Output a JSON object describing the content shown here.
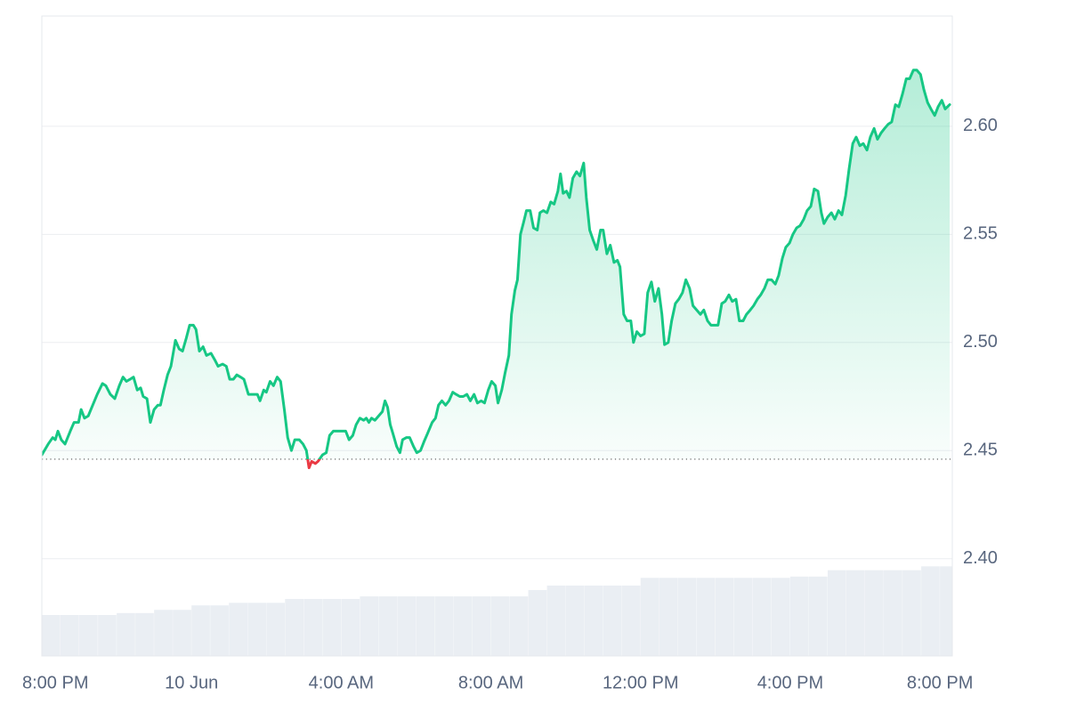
{
  "chart_data": {
    "type": "line",
    "color": "#16c784",
    "below_color": "#ea3943",
    "baseline": 2.446,
    "grid": true,
    "xlim": [
      20,
      44.33
    ],
    "xticks": [
      {
        "value": 20,
        "label": "8:00 PM"
      },
      {
        "value": 24,
        "label": "10 Jun"
      },
      {
        "value": 28,
        "label": "4:00 AM"
      },
      {
        "value": 32,
        "label": "8:00 AM"
      },
      {
        "value": 36,
        "label": "12:00 PM"
      },
      {
        "value": 40,
        "label": "4:00 PM"
      },
      {
        "value": 44,
        "label": "8:00 PM"
      }
    ],
    "ylim": [
      2.355,
      2.651
    ],
    "yticks": [
      {
        "value": 2.4,
        "label": "2.40"
      },
      2.45,
      {
        "value": 2.5,
        "label": "2.50"
      },
      2.55,
      {
        "value": 2.6,
        "label": "2.60"
      }
    ],
    "x": [
      20.0,
      20.17,
      20.29,
      20.36,
      20.43,
      20.52,
      20.62,
      20.76,
      20.86,
      20.98,
      21.05,
      21.14,
      21.24,
      21.36,
      21.48,
      21.62,
      21.71,
      21.83,
      21.95,
      22.07,
      22.17,
      22.26,
      22.36,
      22.45,
      22.55,
      22.64,
      22.71,
      22.81,
      22.9,
      23.0,
      23.1,
      23.17,
      23.26,
      23.36,
      23.45,
      23.57,
      23.67,
      23.76,
      23.86,
      23.95,
      24.05,
      24.12,
      24.21,
      24.31,
      24.4,
      24.52,
      24.62,
      24.71,
      24.83,
      24.93,
      25.02,
      25.12,
      25.21,
      25.31,
      25.4,
      25.52,
      25.64,
      25.76,
      25.83,
      25.93,
      26.0,
      26.1,
      26.19,
      26.29,
      26.38,
      26.48,
      26.57,
      26.67,
      26.76,
      26.88,
      26.98,
      27.07,
      27.14,
      27.21,
      27.31,
      27.38,
      27.5,
      27.6,
      27.69,
      27.79,
      27.88,
      28.0,
      28.12,
      28.21,
      28.31,
      28.4,
      28.5,
      28.6,
      28.67,
      28.74,
      28.81,
      28.9,
      29.0,
      29.1,
      29.17,
      29.24,
      29.31,
      29.38,
      29.48,
      29.57,
      29.64,
      29.74,
      29.83,
      29.93,
      30.02,
      30.12,
      30.21,
      30.31,
      30.43,
      30.52,
      30.6,
      30.69,
      30.79,
      30.88,
      30.98,
      31.07,
      31.17,
      31.26,
      31.36,
      31.45,
      31.55,
      31.64,
      31.74,
      31.83,
      31.93,
      32.02,
      32.12,
      32.19,
      32.29,
      32.38,
      32.48,
      32.55,
      32.64,
      32.71,
      32.79,
      32.88,
      32.95,
      33.05,
      33.14,
      33.24,
      33.31,
      33.4,
      33.5,
      33.6,
      33.69,
      33.79,
      33.86,
      33.93,
      34.02,
      34.1,
      34.19,
      34.29,
      34.38,
      34.48,
      34.55,
      34.64,
      34.74,
      34.83,
      34.93,
      35.0,
      35.1,
      35.19,
      35.29,
      35.38,
      35.45,
      35.55,
      35.64,
      35.74,
      35.81,
      35.9,
      36.0,
      36.1,
      36.19,
      36.29,
      36.38,
      36.48,
      36.57,
      36.64,
      36.74,
      36.83,
      36.93,
      37.02,
      37.12,
      37.21,
      37.31,
      37.4,
      37.5,
      37.6,
      37.69,
      37.79,
      37.88,
      37.98,
      38.07,
      38.17,
      38.26,
      38.36,
      38.45,
      38.55,
      38.64,
      38.74,
      38.83,
      38.93,
      39.02,
      39.12,
      39.21,
      39.31,
      39.4,
      39.5,
      39.6,
      39.69,
      39.79,
      39.88,
      39.98,
      40.07,
      40.17,
      40.26,
      40.36,
      40.45,
      40.55,
      40.64,
      40.74,
      40.83,
      40.9,
      41.0,
      41.1,
      41.19,
      41.29,
      41.38,
      41.48,
      41.57,
      41.67,
      41.76,
      41.86,
      41.95,
      42.05,
      42.14,
      42.24,
      42.33,
      42.43,
      42.52,
      42.62,
      42.71,
      42.81,
      42.9,
      43.0,
      43.1,
      43.19,
      43.29,
      43.38,
      43.48,
      43.57,
      43.67,
      43.76,
      43.86,
      43.95,
      44.05,
      44.14,
      44.26
    ],
    "values": [
      2.448,
      2.453,
      2.456,
      2.455,
      2.459,
      2.455,
      2.453,
      2.459,
      2.463,
      2.463,
      2.469,
      2.465,
      2.466,
      2.471,
      2.476,
      2.481,
      2.48,
      2.476,
      2.474,
      2.48,
      2.484,
      2.482,
      2.483,
      2.484,
      2.478,
      2.479,
      2.475,
      2.474,
      2.463,
      2.469,
      2.471,
      2.471,
      2.478,
      2.485,
      2.489,
      2.501,
      2.497,
      2.496,
      2.502,
      2.508,
      2.508,
      2.506,
      2.496,
      2.498,
      2.494,
      2.495,
      2.492,
      2.489,
      2.49,
      2.489,
      2.483,
      2.483,
      2.485,
      2.484,
      2.483,
      2.476,
      2.476,
      2.476,
      2.473,
      2.478,
      2.477,
      2.482,
      2.48,
      2.484,
      2.482,
      2.469,
      2.456,
      2.45,
      2.455,
      2.455,
      2.453,
      2.45,
      2.442,
      2.445,
      2.444,
      2.445,
      2.448,
      2.449,
      2.457,
      2.459,
      2.459,
      2.459,
      2.459,
      2.455,
      2.457,
      2.462,
      2.465,
      2.464,
      2.465,
      2.463,
      2.465,
      2.464,
      2.466,
      2.468,
      2.473,
      2.47,
      2.462,
      2.458,
      2.452,
      2.449,
      2.455,
      2.456,
      2.456,
      2.452,
      2.449,
      2.45,
      2.454,
      2.458,
      2.463,
      2.465,
      2.471,
      2.473,
      2.471,
      2.473,
      2.477,
      2.476,
      2.475,
      2.475,
      2.476,
      2.473,
      2.476,
      2.472,
      2.473,
      2.472,
      2.478,
      2.482,
      2.48,
      2.472,
      2.478,
      2.486,
      2.494,
      2.513,
      2.524,
      2.529,
      2.55,
      2.556,
      2.561,
      2.561,
      2.553,
      2.552,
      2.56,
      2.561,
      2.56,
      2.565,
      2.564,
      2.57,
      2.578,
      2.569,
      2.57,
      2.567,
      2.576,
      2.579,
      2.577,
      2.583,
      2.567,
      2.552,
      2.547,
      2.543,
      2.552,
      2.552,
      2.541,
      2.545,
      2.537,
      2.538,
      2.535,
      2.513,
      2.51,
      2.51,
      2.5,
      2.505,
      2.503,
      2.504,
      2.523,
      2.528,
      2.519,
      2.525,
      2.513,
      2.499,
      2.5,
      2.51,
      2.518,
      2.52,
      2.523,
      2.529,
      2.525,
      2.517,
      2.515,
      2.513,
      2.515,
      2.51,
      2.508,
      2.508,
      2.508,
      2.518,
      2.519,
      2.522,
      2.519,
      2.52,
      2.51,
      2.51,
      2.513,
      2.515,
      2.517,
      2.52,
      2.522,
      2.525,
      2.529,
      2.529,
      2.527,
      2.531,
      2.539,
      2.544,
      2.546,
      2.55,
      2.553,
      2.554,
      2.557,
      2.561,
      2.563,
      2.571,
      2.57,
      2.56,
      2.555,
      2.558,
      2.56,
      2.557,
      2.561,
      2.559,
      2.568,
      2.58,
      2.592,
      2.595,
      2.591,
      2.592,
      2.589,
      2.595,
      2.599,
      2.594,
      2.597,
      2.599,
      2.601,
      2.602,
      2.61,
      2.609,
      2.615,
      2.622,
      2.622,
      2.626,
      2.626,
      2.624,
      2.617,
      2.611,
      2.608,
      2.605,
      2.609,
      2.612,
      2.608,
      2.61
    ],
    "y2lim": [
      0,
      100
    ],
    "volume": {
      "axis": "y2",
      "color": "#eaeef3",
      "x": [
        20,
        20.5,
        21,
        21.5,
        22,
        22.5,
        23,
        23.5,
        24,
        24.5,
        25,
        25.5,
        26,
        26.5,
        27,
        27.5,
        28,
        28.5,
        29,
        29.5,
        30,
        30.5,
        31,
        31.5,
        32,
        32.5,
        33,
        33.5,
        34,
        34.5,
        35,
        35.5,
        36,
        36.5,
        37,
        37.5,
        38,
        38.5,
        39,
        39.5,
        40,
        40.5,
        41,
        41.5,
        42,
        42.5,
        43,
        43.5,
        44
      ],
      "values": [
        6.4,
        6.4,
        6.4,
        6.4,
        6.7,
        6.7,
        7.2,
        7.2,
        7.9,
        7.9,
        8.3,
        8.3,
        8.3,
        8.9,
        8.9,
        8.9,
        8.9,
        9.3,
        9.3,
        9.3,
        9.3,
        9.3,
        9.3,
        9.3,
        9.3,
        9.3,
        10.3,
        11.0,
        11.0,
        11.0,
        11.0,
        11.0,
        12.2,
        12.2,
        12.2,
        12.2,
        12.2,
        12.2,
        12.2,
        12.2,
        12.4,
        12.4,
        13.4,
        13.4,
        13.4,
        13.4,
        13.4,
        14.0,
        14.0
      ]
    }
  }
}
